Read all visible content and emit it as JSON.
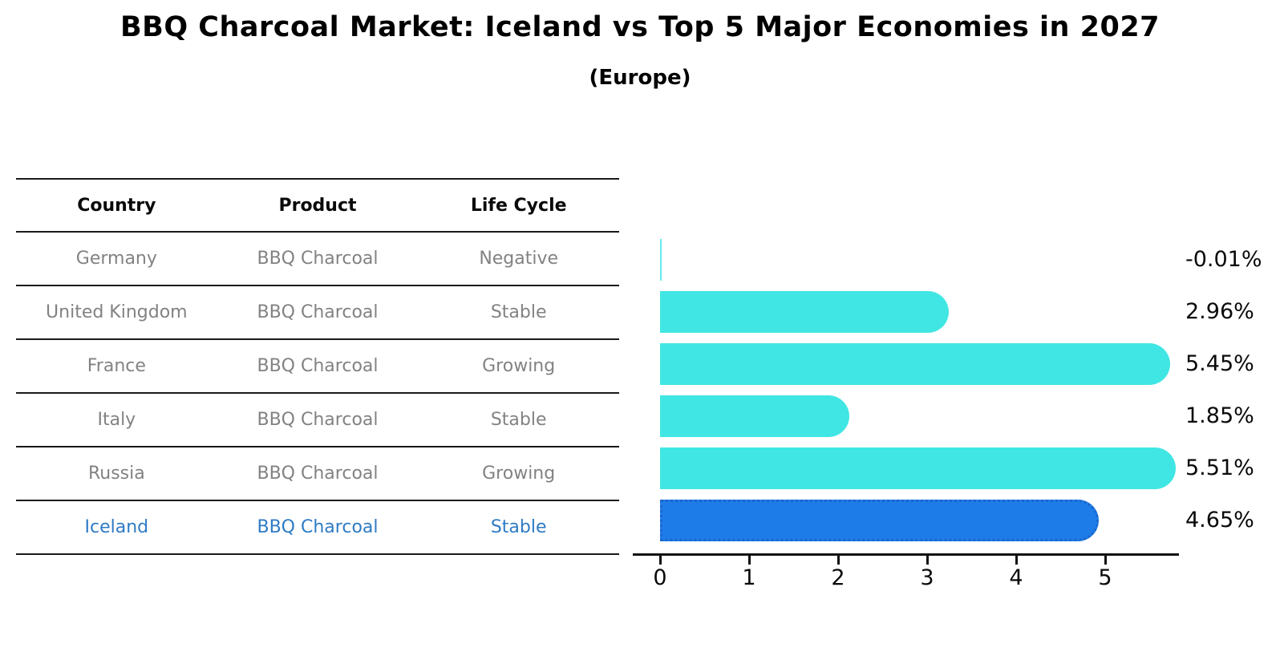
{
  "title": "BBQ Charcoal Market: Iceland vs Top 5 Major Economies in 2027",
  "subtitle": "(Europe)",
  "table": {
    "headers": {
      "country": "Country",
      "product": "Product",
      "life_cycle": "Life Cycle"
    },
    "rows": [
      {
        "country": "Germany",
        "product": "BBQ Charcoal",
        "life_cycle": "Negative"
      },
      {
        "country": "United Kingdom",
        "product": "BBQ Charcoal",
        "life_cycle": "Stable"
      },
      {
        "country": "France",
        "product": "BBQ Charcoal",
        "life_cycle": "Growing"
      },
      {
        "country": "Italy",
        "product": "BBQ Charcoal",
        "life_cycle": "Stable"
      },
      {
        "country": "Russia",
        "product": "BBQ Charcoal",
        "life_cycle": "Growing"
      },
      {
        "country": "Iceland",
        "product": "BBQ Charcoal",
        "life_cycle": "Stable"
      }
    ],
    "highlighted_row": "Iceland"
  },
  "chart_data": {
    "type": "bar",
    "orientation": "horizontal",
    "categories": [
      "Germany",
      "United Kingdom",
      "France",
      "Italy",
      "Russia",
      "Iceland"
    ],
    "values": [
      -0.01,
      2.96,
      5.45,
      1.85,
      5.51,
      4.65
    ],
    "value_labels": [
      "-0.01%",
      "2.96%",
      "5.45%",
      "1.85%",
      "5.51%",
      "4.65%"
    ],
    "x_tick_labels": [
      "0",
      "1",
      "2",
      "3",
      "4",
      "5"
    ],
    "xlim": [
      0,
      5.8
    ],
    "grid": false,
    "legend": "none",
    "bar_color": "#40e6e3",
    "highlight_color": "#1e7ce8",
    "highlight_border_color": "#1b66cc",
    "highlight_index": 5,
    "title": "BBQ Charcoal Market: Iceland vs Top 5 Major Economies in 2027",
    "subtitle": "(Europe)"
  },
  "colors": {
    "title_text": "#000000",
    "table_text": "#828282",
    "table_header_text": "#0a0a0a",
    "highlight_text": "#2e7bc4",
    "axis": "#111111"
  }
}
